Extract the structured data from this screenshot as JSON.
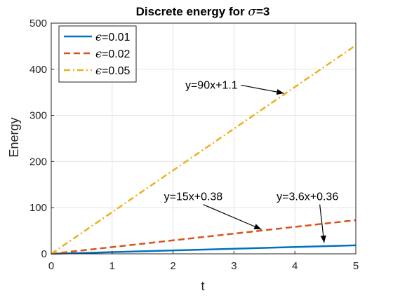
{
  "chart_data": {
    "type": "line",
    "title_prefix": "Discrete energy for ",
    "title_symbol": "σ",
    "title_suffix": "=3",
    "xlabel": "t",
    "ylabel": "Energy",
    "xlim": [
      0,
      5
    ],
    "ylim": [
      0,
      500
    ],
    "xticks": [
      0,
      1,
      2,
      3,
      4,
      5
    ],
    "yticks": [
      0,
      100,
      200,
      300,
      400,
      500
    ],
    "grid": true,
    "legend_position": "top-left",
    "series": [
      {
        "symbol": "ϵ",
        "label_suffix": "=0.01",
        "color": "#0072BD",
        "style": "solid",
        "x": [
          0,
          5
        ],
        "y": [
          0,
          18.4
        ]
      },
      {
        "symbol": "ϵ",
        "label_suffix": "=0.02",
        "color": "#D95319",
        "style": "dashed",
        "x": [
          0,
          5
        ],
        "y": [
          0,
          73
        ]
      },
      {
        "symbol": "ϵ",
        "label_suffix": "=0.05",
        "color": "#EDB120",
        "style": "dashdot",
        "x": [
          0,
          5
        ],
        "y": [
          0,
          452
        ]
      }
    ],
    "annotations": [
      {
        "text": "y=90x+1.1",
        "text_x": 2.2,
        "text_y": 358,
        "tip_x": 3.82,
        "tip_y": 348
      },
      {
        "text": "y=15x+0.38",
        "text_x": 1.85,
        "text_y": 116,
        "tip_x": 3.45,
        "tip_y": 53
      },
      {
        "text": "y=3.6x+0.36",
        "text_x": 3.7,
        "text_y": 116,
        "tip_x": 4.48,
        "tip_y": 24
      }
    ]
  }
}
